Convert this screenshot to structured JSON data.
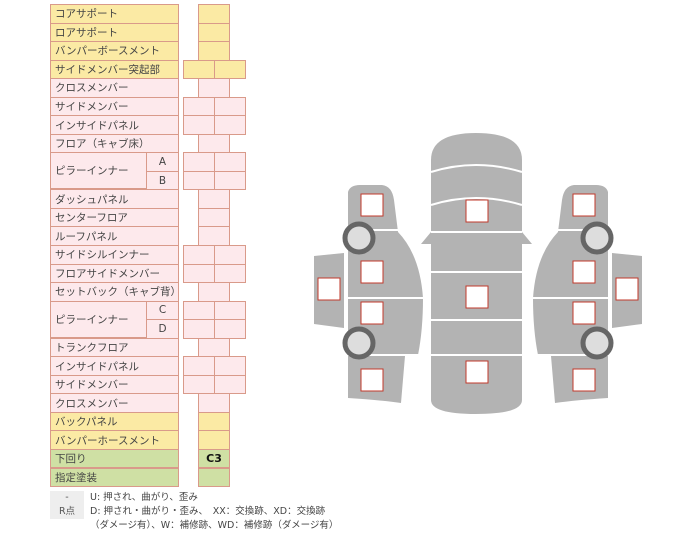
{
  "rows": [
    {
      "label": "コアサポート",
      "type": "single",
      "color": "y"
    },
    {
      "label": "ロアサポート",
      "type": "single",
      "color": "y"
    },
    {
      "label": "バンパーボースメント",
      "type": "single",
      "color": "y"
    },
    {
      "label": "サイドメンバー突起部",
      "type": "double",
      "color": "y"
    },
    {
      "label": "クロスメンバー",
      "type": "single",
      "color": "p"
    },
    {
      "label": "サイドメンバー",
      "type": "double",
      "color": "p"
    },
    {
      "label": "インサイドパネル",
      "type": "double",
      "color": "p"
    },
    {
      "label": "フロア（キャブ床）",
      "type": "single",
      "color": "p"
    },
    {
      "label": "ピラーインナー",
      "sub": "A",
      "type": "double",
      "color": "p",
      "span": 2
    },
    {
      "label": "",
      "sub": "B",
      "type": "double",
      "color": "p"
    },
    {
      "label": "ダッシュパネル",
      "type": "single",
      "color": "p"
    },
    {
      "label": "センターフロア",
      "type": "single",
      "color": "p"
    },
    {
      "label": "ルーフパネル",
      "type": "single",
      "color": "p"
    },
    {
      "label": "サイドシルインナー",
      "type": "double",
      "color": "p"
    },
    {
      "label": "フロアサイドメンバー",
      "type": "double",
      "color": "p"
    },
    {
      "label": "セットバック（キャブ背）",
      "type": "single",
      "color": "p"
    },
    {
      "label": "ピラーインナー",
      "sub": "C",
      "type": "double",
      "color": "p",
      "span": 2
    },
    {
      "label": "",
      "sub": "D",
      "type": "double",
      "color": "p"
    },
    {
      "label": "トランクフロア",
      "type": "single",
      "color": "p"
    },
    {
      "label": "インサイドパネル",
      "type": "double",
      "color": "p"
    },
    {
      "label": "サイドメンバー",
      "type": "double",
      "color": "p"
    },
    {
      "label": "クロスメンバー",
      "type": "single",
      "color": "p"
    },
    {
      "label": "バックパネル",
      "type": "single",
      "color": "y"
    },
    {
      "label": "バンパーホースメント",
      "type": "single",
      "color": "y"
    },
    {
      "label": "下回り",
      "type": "single",
      "color": "g",
      "value": "C3"
    },
    {
      "label": "指定塗装",
      "type": "single",
      "color": "g"
    }
  ],
  "legend": [
    {
      "key": "-",
      "text": "U: 押され、曲がり、歪み"
    },
    {
      "key": "R点",
      "text": "D: 押され・曲がり・歪み、　XX：交換跡、XD：交換跡"
    },
    {
      "key": "",
      "text": "（ダメージ有）、W：補修跡、WD：補修跡（ダメージ有）"
    }
  ],
  "colors": {
    "yellow": "#fbeaa4",
    "pink": "#fde9ec",
    "green": "#cfe0a4",
    "body": "#b3b3b3",
    "marker": "#c0392b"
  }
}
